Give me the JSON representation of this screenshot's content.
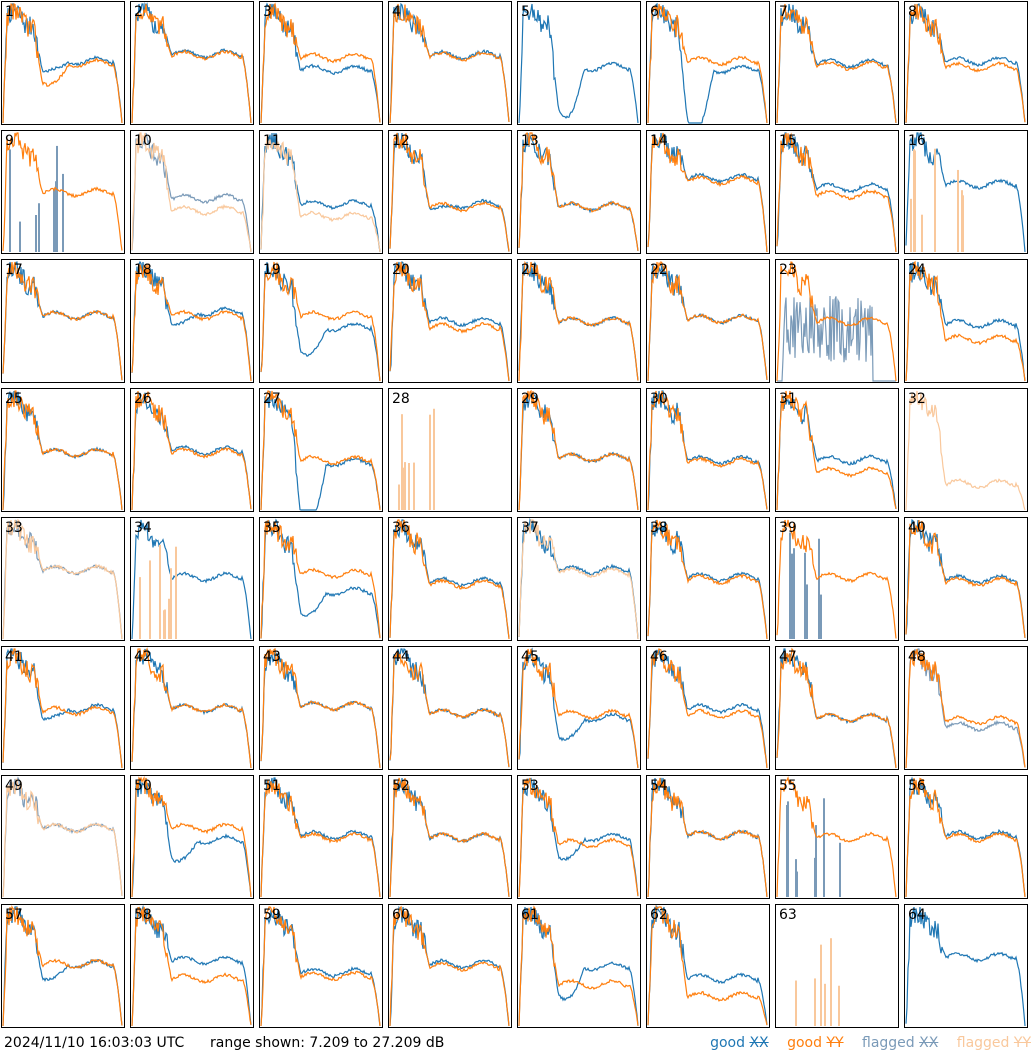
{
  "footer": {
    "timestamp": "2024/11/10 16:03:03 UTC",
    "range_text": "range shown: 7.209 to 27.209 dB"
  },
  "legend": {
    "good_xx": {
      "word": "good",
      "pol": "XX",
      "color": "#1f77b4"
    },
    "good_yy": {
      "word": "good",
      "pol": "YY",
      "color": "#ff7f0e"
    },
    "flagged_xx": {
      "word": "flagged",
      "pol": "XX",
      "color": "#7a9ab8"
    },
    "flagged_yy": {
      "word": "flagged",
      "pol": "YY",
      "color": "#f9c89c"
    }
  },
  "chart_data": {
    "type": "line",
    "layout": "8x8 small multiples",
    "ylim_db": [
      7.209,
      27.209
    ],
    "x_axis": "channel (unlabeled)",
    "tiles": [
      {
        "id": "1",
        "xx": {
          "status": "good",
          "level": 0.52,
          "dip": 0.1
        },
        "yy": {
          "status": "good",
          "level": 0.5,
          "dip": 0.2
        }
      },
      {
        "id": "2",
        "xx": {
          "status": "good",
          "level": 0.58
        },
        "yy": {
          "status": "good",
          "level": 0.57
        }
      },
      {
        "id": "3",
        "xx": {
          "status": "good",
          "level": 0.45
        },
        "yy": {
          "status": "good",
          "level": 0.55
        }
      },
      {
        "id": "4",
        "xx": {
          "status": "good",
          "level": 0.57
        },
        "yy": {
          "status": "good",
          "level": 0.56
        }
      },
      {
        "id": "5",
        "xx": {
          "status": "good",
          "level": 0.47,
          "dip": 0.45
        },
        "yy": {
          "status": "absent"
        }
      },
      {
        "id": "6",
        "xx": {
          "status": "good",
          "level": 0.45,
          "dip": 0.55
        },
        "yy": {
          "status": "good",
          "level": 0.52
        }
      },
      {
        "id": "7",
        "xx": {
          "status": "good",
          "level": 0.5
        },
        "yy": {
          "status": "good",
          "level": 0.48
        }
      },
      {
        "id": "8",
        "xx": {
          "status": "good",
          "level": 0.52
        },
        "yy": {
          "status": "good",
          "level": 0.47
        }
      },
      {
        "id": "9",
        "xx": {
          "status": "spikes"
        },
        "yy": {
          "status": "good",
          "level": 0.5
        }
      },
      {
        "id": "10",
        "xx": {
          "status": "flagged",
          "level": 0.45
        },
        "yy": {
          "status": "flagged",
          "level": 0.35
        }
      },
      {
        "id": "11",
        "xx": {
          "status": "good",
          "level": 0.4
        },
        "yy": {
          "status": "flagged",
          "level": 0.3
        }
      },
      {
        "id": "12",
        "xx": {
          "status": "good",
          "level": 0.4,
          "dip": 0.05
        },
        "yy": {
          "status": "good",
          "level": 0.38
        }
      },
      {
        "id": "13",
        "xx": {
          "status": "good",
          "level": 0.38
        },
        "yy": {
          "status": "good",
          "level": 0.38
        }
      },
      {
        "id": "14",
        "xx": {
          "status": "good",
          "level": 0.62
        },
        "yy": {
          "status": "good",
          "level": 0.6
        }
      },
      {
        "id": "15",
        "xx": {
          "status": "good",
          "level": 0.54
        },
        "yy": {
          "status": "good",
          "level": 0.48
        }
      },
      {
        "id": "16",
        "xx": {
          "status": "good",
          "level": 0.57
        },
        "yy": {
          "status": "spikes"
        }
      },
      {
        "id": "17",
        "xx": {
          "status": "good",
          "level": 0.55
        },
        "yy": {
          "status": "good",
          "level": 0.55
        }
      },
      {
        "id": "18",
        "xx": {
          "status": "good",
          "level": 0.58,
          "dip": 0.12
        },
        "yy": {
          "status": "good",
          "level": 0.55
        }
      },
      {
        "id": "19",
        "xx": {
          "status": "good",
          "level": 0.45,
          "dip": 0.25
        },
        "yy": {
          "status": "good",
          "level": 0.55
        }
      },
      {
        "id": "20",
        "xx": {
          "status": "good",
          "level": 0.5
        },
        "yy": {
          "status": "good",
          "level": 0.45
        }
      },
      {
        "id": "21",
        "xx": {
          "status": "good",
          "level": 0.5
        },
        "yy": {
          "status": "good",
          "level": 0.5
        }
      },
      {
        "id": "22",
        "xx": {
          "status": "good",
          "level": 0.52
        },
        "yy": {
          "status": "good",
          "level": 0.52
        }
      },
      {
        "id": "23",
        "xx": {
          "status": "flagged-noise"
        },
        "yy": {
          "status": "good",
          "level": 0.5
        }
      },
      {
        "id": "24",
        "xx": {
          "status": "good",
          "level": 0.48
        },
        "yy": {
          "status": "good",
          "level": 0.35
        }
      },
      {
        "id": "25",
        "xx": {
          "status": "good",
          "level": 0.48
        },
        "yy": {
          "status": "good",
          "level": 0.48
        }
      },
      {
        "id": "26",
        "xx": {
          "status": "good",
          "level": 0.5
        },
        "yy": {
          "status": "good",
          "level": 0.48
        }
      },
      {
        "id": "27",
        "xx": {
          "status": "good",
          "level": 0.4,
          "dip": 0.55
        },
        "yy": {
          "status": "good",
          "level": 0.42
        }
      },
      {
        "id": "28",
        "xx": {
          "status": "absent"
        },
        "yy": {
          "status": "spikes"
        }
      },
      {
        "id": "29",
        "xx": {
          "status": "good",
          "level": 0.44
        },
        "yy": {
          "status": "good",
          "level": 0.44
        }
      },
      {
        "id": "30",
        "xx": {
          "status": "good",
          "level": 0.42
        },
        "yy": {
          "status": "good",
          "level": 0.4
        }
      },
      {
        "id": "31",
        "xx": {
          "status": "good",
          "level": 0.42
        },
        "yy": {
          "status": "good",
          "level": 0.32
        }
      },
      {
        "id": "32",
        "xx": {
          "status": "absent"
        },
        "yy": {
          "status": "flagged",
          "level": 0.22
        }
      },
      {
        "id": "33",
        "xx": {
          "status": "flagged",
          "level": 0.58
        },
        "yy": {
          "status": "flagged",
          "level": 0.58
        }
      },
      {
        "id": "34",
        "xx": {
          "status": "good",
          "level": 0.52
        },
        "yy": {
          "status": "spikes"
        }
      },
      {
        "id": "35",
        "xx": {
          "status": "good",
          "level": 0.4,
          "dip": 0.22
        },
        "yy": {
          "status": "good",
          "level": 0.55
        }
      },
      {
        "id": "36",
        "xx": {
          "status": "good",
          "level": 0.48
        },
        "yy": {
          "status": "good",
          "level": 0.46
        }
      },
      {
        "id": "37",
        "xx": {
          "status": "good",
          "level": 0.58
        },
        "yy": {
          "status": "flagged",
          "level": 0.56
        }
      },
      {
        "id": "38",
        "xx": {
          "status": "good",
          "level": 0.52
        },
        "yy": {
          "status": "good",
          "level": 0.5
        }
      },
      {
        "id": "39",
        "xx": {
          "status": "spikes"
        },
        "yy": {
          "status": "good",
          "level": 0.52
        }
      },
      {
        "id": "40",
        "xx": {
          "status": "good",
          "level": 0.5
        },
        "yy": {
          "status": "good",
          "level": 0.48
        }
      },
      {
        "id": "41",
        "xx": {
          "status": "good",
          "level": 0.5,
          "dip": 0.1
        },
        "yy": {
          "status": "good",
          "level": 0.48
        }
      },
      {
        "id": "42",
        "xx": {
          "status": "good",
          "level": 0.5
        },
        "yy": {
          "status": "good",
          "level": 0.5
        }
      },
      {
        "id": "43",
        "xx": {
          "status": "good",
          "level": 0.52
        },
        "yy": {
          "status": "good",
          "level": 0.52
        }
      },
      {
        "id": "44",
        "xx": {
          "status": "good",
          "level": 0.46
        },
        "yy": {
          "status": "good",
          "level": 0.46
        }
      },
      {
        "id": "45",
        "xx": {
          "status": "good",
          "level": 0.42,
          "dip": 0.2
        },
        "yy": {
          "status": "good",
          "level": 0.45
        }
      },
      {
        "id": "46",
        "xx": {
          "status": "good",
          "level": 0.5
        },
        "yy": {
          "status": "good",
          "level": 0.45
        }
      },
      {
        "id": "47",
        "xx": {
          "status": "good",
          "level": 0.42
        },
        "yy": {
          "status": "good",
          "level": 0.42
        }
      },
      {
        "id": "48",
        "xx": {
          "status": "flagged",
          "level": 0.35
        },
        "yy": {
          "status": "good",
          "level": 0.4
        }
      },
      {
        "id": "49",
        "xx": {
          "status": "flagged",
          "level": 0.58
        },
        "yy": {
          "status": "flagged",
          "level": 0.58
        }
      },
      {
        "id": "50",
        "xx": {
          "status": "good",
          "level": 0.48,
          "dip": 0.2
        },
        "yy": {
          "status": "good",
          "level": 0.58
        }
      },
      {
        "id": "51",
        "xx": {
          "status": "good",
          "level": 0.52
        },
        "yy": {
          "status": "good",
          "level": 0.5
        }
      },
      {
        "id": "52",
        "xx": {
          "status": "good",
          "level": 0.5
        },
        "yy": {
          "status": "good",
          "level": 0.5
        }
      },
      {
        "id": "53",
        "xx": {
          "status": "good",
          "level": 0.5,
          "dip": 0.2
        },
        "yy": {
          "status": "good",
          "level": 0.45
        }
      },
      {
        "id": "54",
        "xx": {
          "status": "good",
          "level": 0.52
        },
        "yy": {
          "status": "good",
          "level": 0.52
        }
      },
      {
        "id": "55",
        "xx": {
          "status": "spikes"
        },
        "yy": {
          "status": "good",
          "level": 0.5
        }
      },
      {
        "id": "56",
        "xx": {
          "status": "good",
          "level": 0.52
        },
        "yy": {
          "status": "good",
          "level": 0.5
        }
      },
      {
        "id": "57",
        "xx": {
          "status": "good",
          "level": 0.52,
          "dip": 0.15
        },
        "yy": {
          "status": "good",
          "level": 0.52
        }
      },
      {
        "id": "58",
        "xx": {
          "status": "good",
          "level": 0.55
        },
        "yy": {
          "status": "good",
          "level": 0.4
        }
      },
      {
        "id": "59",
        "xx": {
          "status": "good",
          "level": 0.45
        },
        "yy": {
          "status": "good",
          "level": 0.42
        }
      },
      {
        "id": "60",
        "xx": {
          "status": "good",
          "level": 0.52
        },
        "yy": {
          "status": "good",
          "level": 0.5
        }
      },
      {
        "id": "61",
        "xx": {
          "status": "good",
          "level": 0.5,
          "dip": 0.3
        },
        "yy": {
          "status": "good",
          "level": 0.35
        }
      },
      {
        "id": "62",
        "xx": {
          "status": "good",
          "level": 0.4
        },
        "yy": {
          "status": "good",
          "level": 0.25
        }
      },
      {
        "id": "63",
        "xx": {
          "status": "absent"
        },
        "yy": {
          "status": "spikes"
        }
      },
      {
        "id": "64",
        "xx": {
          "status": "good",
          "level": 0.58
        },
        "yy": {
          "status": "absent"
        }
      }
    ]
  }
}
